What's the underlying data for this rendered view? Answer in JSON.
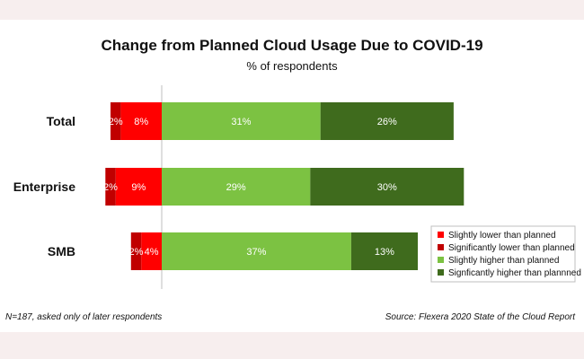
{
  "chart_data": {
    "type": "bar",
    "orientation": "horizontal",
    "stacked": true,
    "diverging": true,
    "title": "Change from Planned Cloud Usage Due to COVID-19",
    "subtitle": "% of respondents",
    "categories": [
      "Total",
      "Enterprise",
      "SMB"
    ],
    "series": [
      {
        "name": "Slightly lower than planned",
        "color": "#ff0000",
        "side": "negative",
        "values": [
          8,
          9,
          4
        ],
        "labels": [
          "8%",
          "9%",
          "4%"
        ]
      },
      {
        "name": "Significantly lower than planned",
        "color": "#c00000",
        "side": "negative",
        "values": [
          2,
          2,
          2
        ],
        "labels": [
          "2%",
          "2%",
          "2%"
        ]
      },
      {
        "name": "Slightly higher than planned",
        "color": "#7cc242",
        "side": "positive",
        "values": [
          31,
          29,
          37
        ],
        "labels": [
          "31%",
          "29%",
          "37%"
        ]
      },
      {
        "name": "Signficantly higher than plannned",
        "color": "#3f6b1d",
        "side": "positive",
        "values": [
          26,
          30,
          13
        ],
        "labels": [
          "26%",
          "30%",
          "13%"
        ]
      }
    ],
    "legend_position": "bottom-right",
    "grid": false,
    "footnote": "N=187, asked only of later respondents",
    "source": "Source: Flexera 2020 State of the Cloud Report"
  }
}
